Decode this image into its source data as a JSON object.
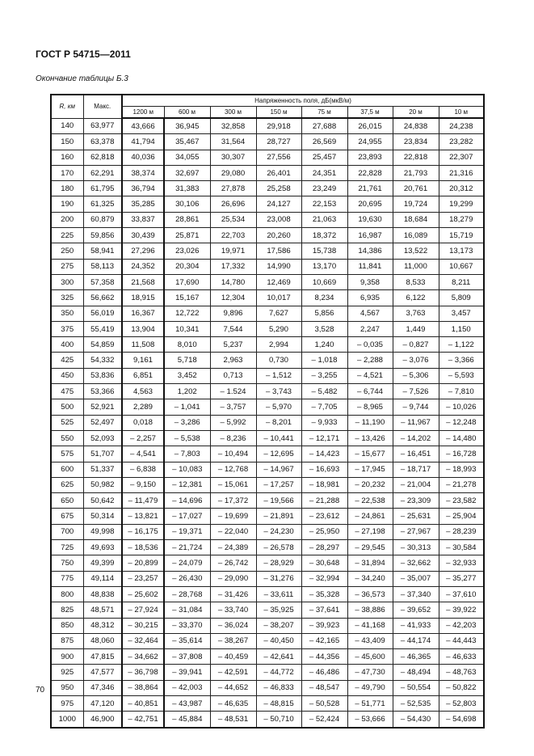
{
  "header": {
    "doc_id": "ГОСТ Р 54715—2011",
    "caption": "Окончание таблицы Б.3"
  },
  "table": {
    "col_r": "R, км",
    "col_max": "Макс.",
    "group_header": "Напряженность поля, дБ(мкВ/м)",
    "heights": [
      "1200 м",
      "600 м",
      "300 м",
      "150 м",
      "75 м",
      "37,5 м",
      "20 м",
      "10 м"
    ],
    "rows": [
      [
        "140",
        "63,977",
        "43,666",
        "36,945",
        "32,858",
        "29,918",
        "27,688",
        "26,015",
        "24,838",
        "24,238"
      ],
      [
        "150",
        "63,378",
        "41,794",
        "35,467",
        "31,564",
        "28,727",
        "26,569",
        "24,955",
        "23,834",
        "23,282"
      ],
      [
        "160",
        "62,818",
        "40,036",
        "34,055",
        "30,307",
        "27,556",
        "25,457",
        "23,893",
        "22,818",
        "22,307"
      ],
      [
        "170",
        "62,291",
        "38,374",
        "32,697",
        "29,080",
        "26,401",
        "24,351",
        "22,828",
        "21,793",
        "21,316"
      ],
      [
        "180",
        "61,795",
        "36,794",
        "31,383",
        "27,878",
        "25,258",
        "23,249",
        "21,761",
        "20,761",
        "20,312"
      ],
      [
        "190",
        "61,325",
        "35,285",
        "30,106",
        "26,696",
        "24,127",
        "22,153",
        "20,695",
        "19,724",
        "19,299"
      ],
      [
        "200",
        "60,879",
        "33,837",
        "28,861",
        "25,534",
        "23,008",
        "21,063",
        "19,630",
        "18,684",
        "18,279"
      ],
      [
        "225",
        "59,856",
        "30,439",
        "25,871",
        "22,703",
        "20,260",
        "18,372",
        "16,987",
        "16,089",
        "15,719"
      ],
      [
        "250",
        "58,941",
        "27,296",
        "23,026",
        "19,971",
        "17,586",
        "15,738",
        "14,386",
        "13,522",
        "13,173"
      ],
      [
        "275",
        "58,113",
        "24,352",
        "20,304",
        "17,332",
        "14,990",
        "13,170",
        "11,841",
        "11,000",
        "10,667"
      ],
      [
        "300",
        "57,358",
        "21,568",
        "17,690",
        "14,780",
        "12,469",
        "10,669",
        "9,358",
        "8,533",
        "8,211"
      ],
      [
        "325",
        "56,662",
        "18,915",
        "15,167",
        "12,304",
        "10,017",
        "8,234",
        "6,935",
        "6,122",
        "5,809"
      ],
      [
        "350",
        "56,019",
        "16,367",
        "12,722",
        "9,896",
        "7,627",
        "5,856",
        "4,567",
        "3,763",
        "3,457"
      ],
      [
        "375",
        "55,419",
        "13,904",
        "10,341",
        "7,544",
        "5,290",
        "3,528",
        "2,247",
        "1,449",
        "1,150"
      ],
      [
        "400",
        "54,859",
        "11,508",
        "8,010",
        "5,237",
        "2,994",
        "1,240",
        "– 0,035",
        "– 0,827",
        "– 1,122"
      ],
      [
        "425",
        "54,332",
        "9,161",
        "5,718",
        "2,963",
        "0,730",
        "– 1,018",
        "– 2,288",
        "– 3,076",
        "– 3,366"
      ],
      [
        "450",
        "53,836",
        "6,851",
        "3,452",
        "0,713",
        "– 1,512",
        "– 3,255",
        "– 4,521",
        "– 5,306",
        "– 5,593"
      ],
      [
        "475",
        "53,366",
        "4,563",
        "1,202",
        "– 1.524",
        "– 3,743",
        "– 5,482",
        "– 6,744",
        "– 7,526",
        "– 7,810"
      ],
      [
        "500",
        "52,921",
        "2,289",
        "– 1,041",
        "– 3,757",
        "– 5,970",
        "– 7,705",
        "– 8,965",
        "– 9,744",
        "– 10,026"
      ],
      [
        "525",
        "52,497",
        "0,018",
        "– 3,286",
        "– 5,992",
        "– 8,201",
        "– 9,933",
        "– 11,190",
        "– 11,967",
        "– 12,248"
      ],
      [
        "550",
        "52,093",
        "– 2,257",
        "– 5,538",
        "– 8,236",
        "– 10,441",
        "– 12,171",
        "– 13,426",
        "– 14,202",
        "– 14,480"
      ],
      [
        "575",
        "51,707",
        "– 4,541",
        "– 7,803",
        "– 10,494",
        "– 12,695",
        "– 14,423",
        "– 15,677",
        "– 16,451",
        "– 16,728"
      ],
      [
        "600",
        "51,337",
        "– 6,838",
        "– 10,083",
        "– 12,768",
        "– 14,967",
        "– 16,693",
        "– 17,945",
        "– 18,717",
        "– 18,993"
      ],
      [
        "625",
        "50,982",
        "– 9,150",
        "– 12,381",
        "– 15,061",
        "– 17,257",
        "– 18,981",
        "– 20,232",
        "– 21,004",
        "– 21,278"
      ],
      [
        "650",
        "50,642",
        "– 11,479",
        "– 14,696",
        "– 17,372",
        "– 19,566",
        "– 21,288",
        "– 22,538",
        "– 23,309",
        "– 23,582"
      ],
      [
        "675",
        "50,314",
        "– 13,821",
        "– 17,027",
        "– 19,699",
        "– 21,891",
        "– 23,612",
        "– 24,861",
        "– 25,631",
        "– 25,904"
      ],
      [
        "700",
        "49,998",
        "– 16,175",
        "– 19,371",
        "– 22,040",
        "– 24,230",
        "– 25,950",
        "– 27,198",
        "– 27,967",
        "– 28,239"
      ],
      [
        "725",
        "49,693",
        "– 18,536",
        "– 21,724",
        "– 24,389",
        "– 26,578",
        "– 28,297",
        "– 29,545",
        "– 30,313",
        "– 30,584"
      ],
      [
        "750",
        "49,399",
        "– 20,899",
        "– 24,079",
        "– 26,742",
        "– 28,929",
        "– 30,648",
        "– 31,894",
        "– 32,662",
        "– 32,933"
      ],
      [
        "775",
        "49,114",
        "– 23,257",
        "– 26,430",
        "– 29,090",
        "– 31,276",
        "– 32,994",
        "– 34,240",
        "– 35,007",
        "– 35,277"
      ],
      [
        "800",
        "48,838",
        "– 25,602",
        "– 28,768",
        "– 31,426",
        "– 33,611",
        "– 35,328",
        "– 36,573",
        "– 37,340",
        "– 37,610"
      ],
      [
        "825",
        "48,571",
        "– 27,924",
        "– 31,084",
        "– 33,740",
        "– 35,925",
        "– 37,641",
        "– 38,886",
        "– 39,652",
        "– 39,922"
      ],
      [
        "850",
        "48,312",
        "– 30,215",
        "– 33,370",
        "– 36,024",
        "– 38,207",
        "– 39,923",
        "– 41,168",
        "– 41,933",
        "– 42,203"
      ],
      [
        "875",
        "48,060",
        "– 32,464",
        "– 35,614",
        "– 38,267",
        "– 40,450",
        "– 42,165",
        "– 43,409",
        "– 44,174",
        "– 44,443"
      ],
      [
        "900",
        "47,815",
        "– 34,662",
        "– 37,808",
        "– 40,459",
        "– 42,641",
        "– 44,356",
        "– 45,600",
        "– 46,365",
        "– 46,633"
      ],
      [
        "925",
        "47,577",
        "– 36,798",
        "– 39,941",
        "– 42,591",
        "– 44,772",
        "– 46,486",
        "– 47,730",
        "– 48,494",
        "– 48,763"
      ],
      [
        "950",
        "47,346",
        "– 38,864",
        "– 42,003",
        "– 44,652",
        "– 46,833",
        "– 48,547",
        "– 49,790",
        "– 50,554",
        "– 50,822"
      ],
      [
        "975",
        "47,120",
        "– 40,851",
        "– 43,987",
        "– 46,635",
        "– 48,815",
        "– 50,528",
        "– 51,771",
        "– 52,535",
        "– 52,803"
      ],
      [
        "1000",
        "46,900",
        "– 42,751",
        "– 45,884",
        "– 48,531",
        "– 50,710",
        "– 52,424",
        "– 53,666",
        "– 54,430",
        "– 54,698"
      ]
    ]
  },
  "footer": {
    "page_number": "70"
  }
}
